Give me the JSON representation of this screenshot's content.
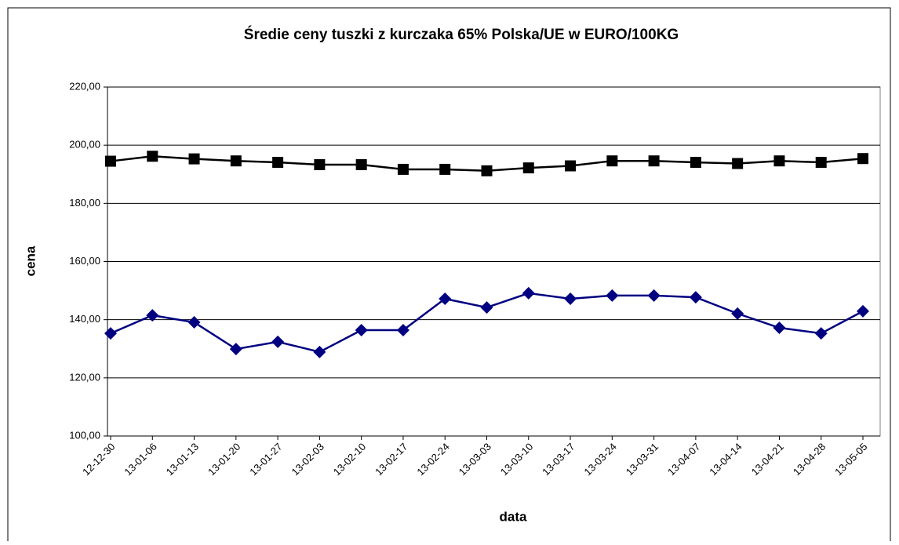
{
  "chart_data": {
    "type": "line",
    "title": "Średie ceny tuszki z kurczaka 65% Polska/UE w EURO/100KG",
    "xlabel": "data",
    "ylabel": "cena",
    "categories": [
      "12-12-30",
      "13-01-06",
      "13-01-13",
      "13-01-20",
      "13-01-27",
      "13-02-03",
      "13-02-10",
      "13-02-17",
      "13-02-24",
      "13-03-03",
      "13-03-10",
      "13-03-17",
      "13-03-24",
      "13-03-31",
      "13-04-07",
      "13-04-14",
      "13-04-21",
      "13-04-28",
      "13-05-05"
    ],
    "series": [
      {
        "color": "#000000",
        "marker": "square",
        "values": [
          194.5,
          196.2,
          195.3,
          194.6,
          194.1,
          193.3,
          193.3,
          191.7,
          191.7,
          191.2,
          192.2,
          192.9,
          194.6,
          194.6,
          194.1,
          193.7,
          194.6,
          194.1,
          195.4
        ]
      },
      {
        "color": "#000080",
        "marker": "diamond",
        "values": [
          135.3,
          141.5,
          139.1,
          129.9,
          132.4,
          128.9,
          136.4,
          136.4,
          147.2,
          144.2,
          149.1,
          147.2,
          148.3,
          148.3,
          147.7,
          142.1,
          137.2,
          135.3,
          142.9
        ]
      }
    ],
    "ylim": [
      100,
      220
    ],
    "yticks": [
      {
        "value": 100,
        "label": "100,00"
      },
      {
        "value": 120,
        "label": "120,00"
      },
      {
        "value": 140,
        "label": "140,00"
      },
      {
        "value": 160,
        "label": "160,00"
      },
      {
        "value": 180,
        "label": "180,00"
      },
      {
        "value": 200,
        "label": "200,00"
      },
      {
        "value": 220,
        "label": "220,00"
      }
    ],
    "grid": true
  }
}
